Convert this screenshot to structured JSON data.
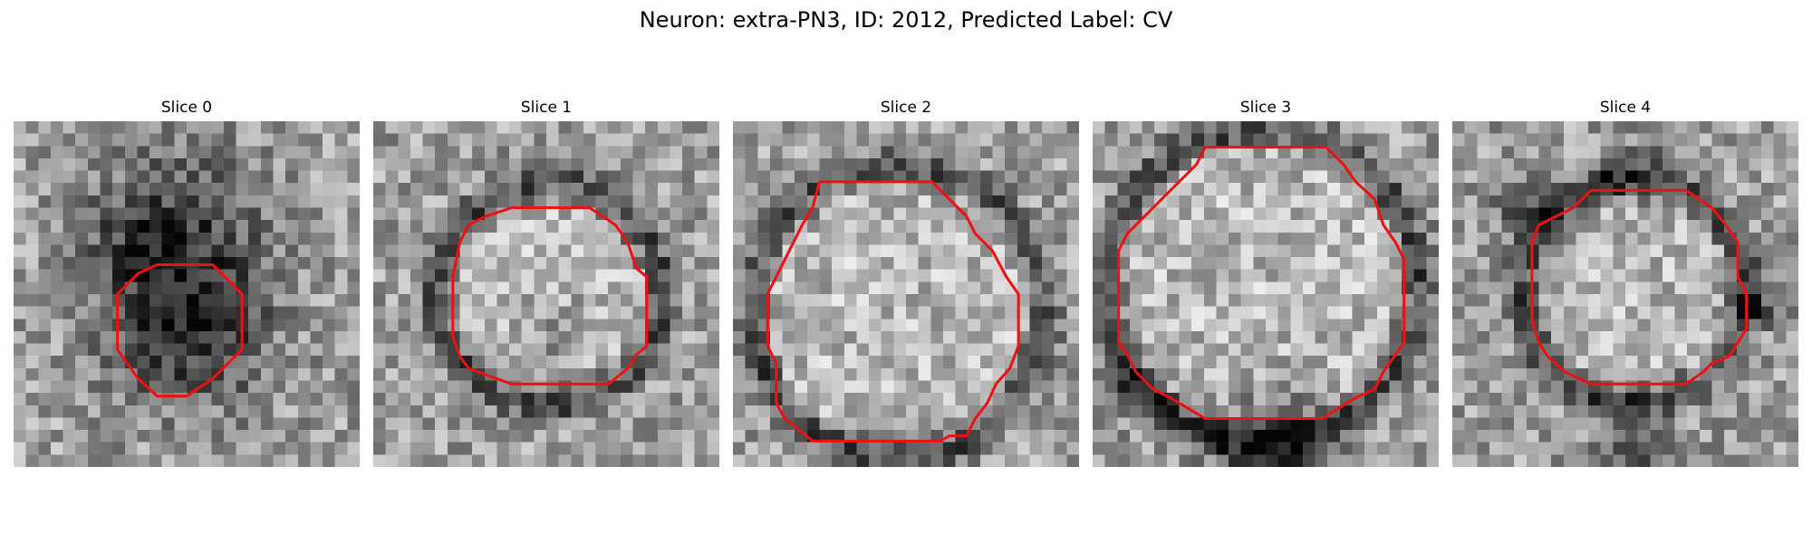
{
  "figure": {
    "title": "Neuron: extra-PN3, ID: 2012, Predicted Label: CV"
  },
  "contour_color": "#ee1111",
  "panels": [
    {
      "title": "Slice 0",
      "contour": [
        [
          10.0,
          8.3
        ],
        [
          11.5,
          8.3
        ],
        [
          13.2,
          10.0
        ],
        [
          13.2,
          13.2
        ],
        [
          11.5,
          14.9
        ],
        [
          10.0,
          15.9
        ],
        [
          8.3,
          15.9
        ],
        [
          7.2,
          14.9
        ],
        [
          6.0,
          13.2
        ],
        [
          6.0,
          10.0
        ],
        [
          7.2,
          8.8
        ],
        [
          8.3,
          8.3
        ]
      ],
      "dark_spots": [
        [
          10.0,
          12.0,
          4.5,
          0.8
        ],
        [
          10.0,
          6.0,
          5.0,
          0.5
        ],
        [
          7.0,
          7.0,
          3.0,
          0.3
        ]
      ]
    },
    {
      "title": "Slice 1",
      "contour": [
        [
          8.0,
          5.0
        ],
        [
          12.5,
          5.0
        ],
        [
          14.0,
          6.0
        ],
        [
          14.7,
          7.0
        ],
        [
          15.2,
          8.5
        ],
        [
          15.8,
          9.0
        ],
        [
          15.8,
          13.0
        ],
        [
          15.2,
          13.5
        ],
        [
          14.7,
          14.3
        ],
        [
          13.6,
          15.2
        ],
        [
          12.5,
          15.2
        ],
        [
          8.0,
          15.2
        ],
        [
          5.5,
          14.3
        ],
        [
          5.0,
          13.6
        ],
        [
          4.6,
          12.5
        ],
        [
          4.6,
          9.0
        ],
        [
          5.0,
          7.0
        ],
        [
          5.5,
          6.0
        ],
        [
          6.5,
          5.5
        ]
      ],
      "ring": [
        10.2,
        10.0,
        6.2
      ],
      "dark_spots": [
        [
          10.5,
          12.5,
          2.0,
          0.3
        ]
      ]
    },
    {
      "title": "Slice 2",
      "contour": [
        [
          5.0,
          3.5
        ],
        [
          11.5,
          3.5
        ],
        [
          12.5,
          4.5
        ],
        [
          13.5,
          5.5
        ],
        [
          14.0,
          6.5
        ],
        [
          15.0,
          7.5
        ],
        [
          15.8,
          9.0
        ],
        [
          16.5,
          10.0
        ],
        [
          16.5,
          13.0
        ],
        [
          16.0,
          14.3
        ],
        [
          15.2,
          15.2
        ],
        [
          14.7,
          16.3
        ],
        [
          14.0,
          17.2
        ],
        [
          13.5,
          18.2
        ],
        [
          12.5,
          18.2
        ],
        [
          12.0,
          18.5
        ],
        [
          4.6,
          18.5
        ],
        [
          4.0,
          18.0
        ],
        [
          3.0,
          17.2
        ],
        [
          2.5,
          16.3
        ],
        [
          2.5,
          14.0
        ],
        [
          2.0,
          13.0
        ],
        [
          2.0,
          10.0
        ],
        [
          2.5,
          9.0
        ],
        [
          3.0,
          8.0
        ],
        [
          3.5,
          7.0
        ],
        [
          4.0,
          6.0
        ],
        [
          4.6,
          5.0
        ]
      ],
      "ring": [
        9.5,
        11.0,
        8.2
      ],
      "dark_spots": []
    },
    {
      "title": "Slice 3",
      "contour": [
        [
          6.5,
          1.5
        ],
        [
          13.5,
          1.5
        ],
        [
          14.5,
          2.5
        ],
        [
          15.2,
          3.5
        ],
        [
          16.3,
          4.5
        ],
        [
          16.8,
          6.0
        ],
        [
          17.5,
          7.0
        ],
        [
          18.0,
          8.0
        ],
        [
          18.0,
          12.8
        ],
        [
          17.5,
          13.5
        ],
        [
          16.8,
          14.5
        ],
        [
          16.3,
          15.5
        ],
        [
          15.2,
          16.0
        ],
        [
          14.2,
          16.6
        ],
        [
          13.3,
          17.2
        ],
        [
          6.5,
          17.2
        ],
        [
          5.5,
          16.6
        ],
        [
          4.5,
          16.0
        ],
        [
          3.5,
          15.5
        ],
        [
          2.5,
          14.5
        ],
        [
          2.0,
          13.5
        ],
        [
          1.5,
          12.8
        ],
        [
          1.5,
          7.5
        ],
        [
          2.0,
          6.5
        ],
        [
          3.0,
          5.5
        ],
        [
          4.0,
          4.5
        ],
        [
          5.0,
          3.5
        ],
        [
          6.0,
          2.5
        ]
      ],
      "ring": [
        9.8,
        9.5,
        8.8
      ],
      "dark_spots": [
        [
          10.5,
          19.0,
          3.5,
          0.7
        ],
        [
          2.5,
          15.5,
          2.0,
          0.4
        ]
      ]
    },
    {
      "title": "Slice 4",
      "contour": [
        [
          8.0,
          4.0
        ],
        [
          13.5,
          4.0
        ],
        [
          15.0,
          5.0
        ],
        [
          15.8,
          6.0
        ],
        [
          16.5,
          7.0
        ],
        [
          16.5,
          9.0
        ],
        [
          17.0,
          10.0
        ],
        [
          17.0,
          12.0
        ],
        [
          16.5,
          12.8
        ],
        [
          16.0,
          13.6
        ],
        [
          15.0,
          14.0
        ],
        [
          14.5,
          14.5
        ],
        [
          13.5,
          15.2
        ],
        [
          8.0,
          15.2
        ],
        [
          6.5,
          14.5
        ],
        [
          5.5,
          13.6
        ],
        [
          5.0,
          12.8
        ],
        [
          4.6,
          11.5
        ],
        [
          4.6,
          7.0
        ],
        [
          5.0,
          6.0
        ],
        [
          6.0,
          5.5
        ],
        [
          7.0,
          5.0
        ]
      ],
      "ring": [
        10.5,
        9.8,
        6.2
      ],
      "dark_spots": [
        [
          4.5,
          5.0,
          2.0,
          0.6
        ],
        [
          17.5,
          10.5,
          1.5,
          0.5
        ],
        [
          10.5,
          3.0,
          2.0,
          0.4
        ],
        [
          10.5,
          19.0,
          2.5,
          0.4
        ]
      ]
    }
  ]
}
